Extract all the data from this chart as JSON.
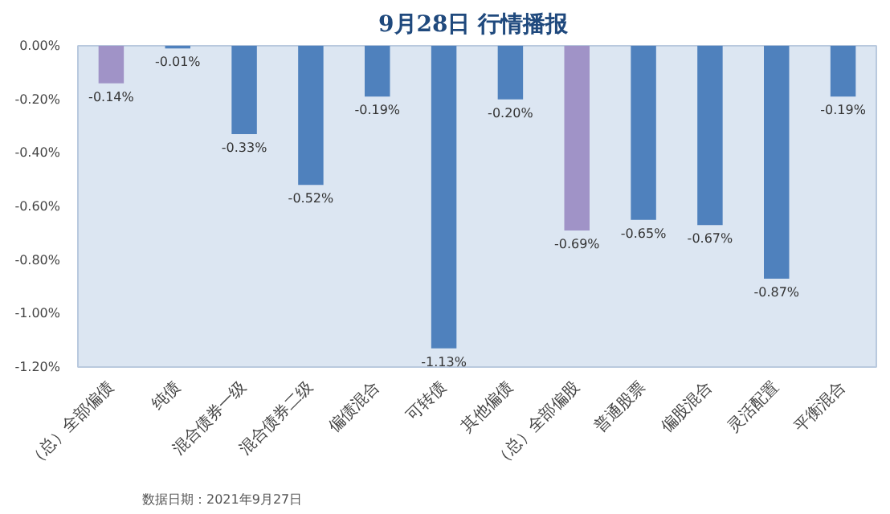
{
  "chart_data": {
    "type": "bar",
    "title": "9月28日  行情播报",
    "categories": [
      "（总）全部偏债",
      "纯债",
      "混合债券一级",
      "混合债券二级",
      "偏债混合",
      "可转债",
      "其他偏债",
      "（总）全部偏股",
      "普通股票",
      "偏股混合",
      "灵活配置",
      "平衡混合"
    ],
    "values": [
      -0.14,
      -0.01,
      -0.33,
      -0.52,
      -0.19,
      -1.13,
      -0.2,
      -0.69,
      -0.65,
      -0.67,
      -0.87,
      -0.19
    ],
    "colors": [
      "#a093c7",
      "#4f81bd",
      "#4f81bd",
      "#4f81bd",
      "#4f81bd",
      "#4f81bd",
      "#4f81bd",
      "#a093c7",
      "#4f81bd",
      "#4f81bd",
      "#4f81bd",
      "#4f81bd"
    ],
    "value_labels": [
      "-0.14%",
      "-0.01%",
      "-0.33%",
      "-0.52%",
      "-0.19%",
      "-1.13%",
      "-0.20%",
      "-0.69%",
      "-0.65%",
      "-0.67%",
      "-0.87%",
      "-0.19%"
    ],
    "ylim": [
      -1.2,
      0
    ],
    "yticks": [
      {
        "value": 0,
        "label": "0.00%"
      },
      {
        "value": -0.2,
        "label": "-0.20%"
      },
      {
        "value": -0.4,
        "label": "-0.40%"
      },
      {
        "value": -0.6,
        "label": "-0.60%"
      },
      {
        "value": -0.8,
        "label": "-0.80%"
      },
      {
        "value": -1.0,
        "label": "-1.00%"
      },
      {
        "value": -1.2,
        "label": "-1.20%"
      }
    ],
    "grid": false,
    "annotations": [
      "数据日期：2021年9月27日"
    ]
  }
}
